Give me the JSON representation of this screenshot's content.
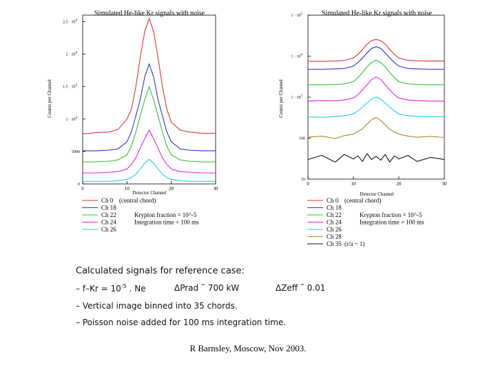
{
  "chart_data": [
    {
      "type": "line",
      "title": "Simulated He-like Kr signals with noise",
      "xlabel": "Detector Channel",
      "ylabel": "Counts per Channel",
      "xlim": [
        0,
        30
      ],
      "ylim": [
        0,
        26000
      ],
      "x_ticks": [
        "0",
        "10",
        "20",
        "30"
      ],
      "y_ticks": [
        {
          "value": 0,
          "label": "0"
        },
        {
          "value": 5000,
          "label": "5000"
        },
        {
          "value": 10000,
          "label": "1 · 10"
        },
        {
          "value": 15000,
          "label": "1.5 · 10"
        },
        {
          "value": 20000,
          "label": "2 · 10"
        },
        {
          "value": 25000,
          "label": "2.5 · 10"
        }
      ],
      "y_tick_exponent": "4",
      "x": [
        0,
        3,
        6,
        8,
        10,
        11,
        12,
        13,
        14,
        15,
        16,
        17,
        18,
        19,
        20,
        22,
        24,
        27,
        30
      ],
      "series": [
        {
          "name": "Ch 0",
          "color": "#e03030",
          "values": [
            7700,
            7900,
            8000,
            8400,
            10000,
            11500,
            15000,
            19500,
            23500,
            25500,
            23500,
            19500,
            15000,
            11500,
            9500,
            8300,
            8000,
            7800,
            7800
          ]
        },
        {
          "name": "Ch 18",
          "color": "#3030d0",
          "values": [
            5100,
            5100,
            5200,
            5400,
            6500,
            8000,
            10500,
            13000,
            16500,
            18500,
            16500,
            13000,
            10500,
            8000,
            6500,
            5400,
            5200,
            5100,
            5100
          ]
        },
        {
          "name": "Ch 22",
          "color": "#30c030",
          "values": [
            3400,
            3400,
            3500,
            3700,
            4500,
            5800,
            8000,
            10500,
            13000,
            15000,
            13000,
            10500,
            8000,
            5800,
            4500,
            3700,
            3500,
            3400,
            3400
          ]
        },
        {
          "name": "Ch 24",
          "color": "#e020e0",
          "values": [
            1700,
            1700,
            1800,
            1900,
            2300,
            3000,
            4000,
            5500,
            7000,
            8300,
            7000,
            5500,
            4000,
            3000,
            2300,
            1900,
            1800,
            1700,
            1700
          ]
        },
        {
          "name": "Ch 26",
          "color": "#20d0e0",
          "values": [
            400,
            400,
            400,
            500,
            700,
            1000,
            1500,
            2300,
            3200,
            3800,
            3200,
            2300,
            1500,
            1000,
            700,
            500,
            400,
            400,
            400
          ]
        }
      ],
      "legend": {
        "placement": "below",
        "entries": [
          {
            "label": "Ch 0",
            "note": "(central chord)",
            "color": "#e03030"
          },
          {
            "label": "Ch 18",
            "note": "",
            "color": "#3030d0"
          },
          {
            "label": "Ch 22",
            "note": "Krypton fraction = 10^-5",
            "color": "#30c030"
          },
          {
            "label": "Ch 24",
            "note": "Integration time = 100 ms",
            "color": "#e020e0"
          },
          {
            "label": "Ch 26",
            "note": "",
            "color": "#20d0e0"
          }
        ]
      }
    },
    {
      "type": "line",
      "title": "Simulated He-like Kr signals with noise",
      "xlabel": "Detector Channel",
      "ylabel": "Counts per Channel",
      "log_y": true,
      "xlim": [
        0,
        30
      ],
      "ylim": [
        10,
        100000
      ],
      "x_ticks": [
        "0",
        "10",
        "20",
        "30"
      ],
      "y_ticks": [
        {
          "value": 10,
          "label": "10"
        },
        {
          "value": 100,
          "label": "100"
        },
        {
          "value": 1000,
          "label": "1 · 10"
        },
        {
          "value": 10000,
          "label": "1 · 10"
        },
        {
          "value": 100000,
          "label": "1 · 10"
        }
      ],
      "y_tick_exponents": [
        "",
        "",
        "3",
        "4",
        "5"
      ],
      "x": [
        0,
        3,
        6,
        8,
        10,
        11,
        12,
        13,
        14,
        15,
        16,
        17,
        18,
        19,
        20,
        22,
        24,
        27,
        30
      ],
      "series": [
        {
          "name": "Ch 0",
          "color": "#e03030",
          "values": [
            7500,
            7500,
            7600,
            7800,
            9000,
            11000,
            14500,
            19500,
            24000,
            25500,
            24000,
            19500,
            14500,
            11000,
            9000,
            7900,
            7700,
            7600,
            7600
          ]
        },
        {
          "name": "Ch 18",
          "color": "#3030d0",
          "values": [
            4800,
            4800,
            4900,
            5000,
            5700,
            7000,
            9000,
            12000,
            15500,
            17000,
            15500,
            12000,
            9000,
            7000,
            5700,
            5000,
            4900,
            4800,
            4800
          ]
        },
        {
          "name": "Ch 22",
          "color": "#30c030",
          "values": [
            2000,
            2000,
            2050,
            2100,
            2400,
            3000,
            4000,
            5500,
            7000,
            8000,
            7000,
            5500,
            4000,
            3000,
            2400,
            2100,
            2050,
            2000,
            2000
          ]
        },
        {
          "name": "Ch 24",
          "color": "#e020e0",
          "values": [
            800,
            820,
            810,
            850,
            950,
            1150,
            1500,
            2000,
            2700,
            3100,
            2700,
            2000,
            1500,
            1150,
            950,
            850,
            820,
            800,
            800
          ]
        },
        {
          "name": "Ch 26",
          "color": "#20d0e0",
          "values": [
            330,
            320,
            340,
            350,
            390,
            460,
            570,
            720,
            900,
            1000,
            900,
            720,
            570,
            460,
            390,
            350,
            340,
            330,
            330
          ]
        },
        {
          "name": "Ch 28",
          "color": "#a08a20",
          "values": [
            105,
            112,
            98,
            115,
            125,
            145,
            170,
            220,
            280,
            320,
            270,
            210,
            165,
            140,
            125,
            112,
            105,
            110,
            104
          ]
        },
        {
          "name": "Ch 35",
          "color": "#111111",
          "values": [
            30,
            38,
            26,
            40,
            31,
            37,
            27,
            42,
            30,
            36,
            29,
            40,
            26,
            37,
            31,
            38,
            27,
            34,
            30
          ]
        }
      ],
      "legend": {
        "placement": "below",
        "entries": [
          {
            "label": "Ch 0",
            "note": "(central chord)",
            "color": "#e03030"
          },
          {
            "label": "Ch 18",
            "note": "",
            "color": "#3030d0"
          },
          {
            "label": "Ch 22",
            "note": "Krypton fraction = 10^-5",
            "color": "#30c030"
          },
          {
            "label": "Ch 24",
            "note": "Integration time = 100 ms",
            "color": "#e020e0"
          },
          {
            "label": "Ch 26",
            "note": "",
            "color": "#20d0e0"
          },
          {
            "label": "Ch 28",
            "note": "",
            "color": "#a08a20"
          },
          {
            "label": "Ch 35",
            "note": "(r/a ~ 1)",
            "color": "#111111"
          }
        ]
      }
    }
  ],
  "caption": {
    "title": "Calculated signals for reference case:",
    "line1_a": "– f–Kr = 10",
    "line1_a_exp": "-5",
    "line1_b": ". Ne",
    "line1_c": "ΔPrad ˜ 700 kW",
    "line1_d": "ΔZeff ˜ 0.01",
    "line2": "– Vertical image binned into 35 chords.",
    "line3": "– Poisson noise added for 100 ms integration time."
  },
  "credit": "R Barnsley, Moscow, Nov 2003."
}
